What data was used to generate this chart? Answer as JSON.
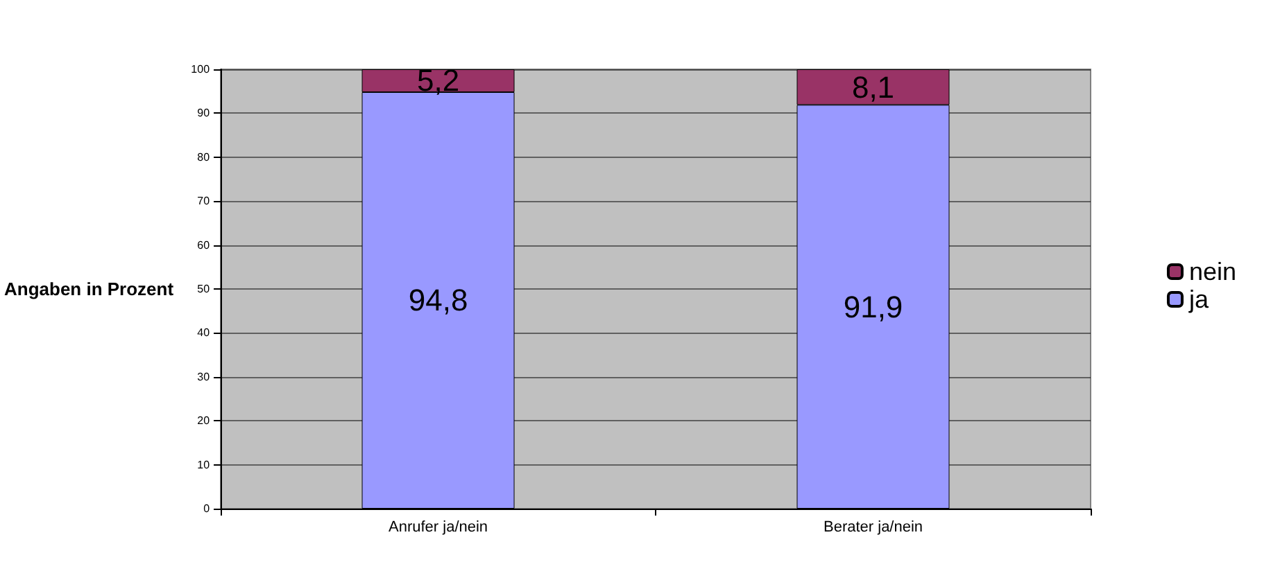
{
  "chart_data": {
    "type": "bar",
    "stacked": true,
    "ylabel": "Angaben in Prozent",
    "categories": [
      "Anrufer ja/nein",
      "Berater ja/nein"
    ],
    "series": [
      {
        "name": "ja",
        "color": "#9999ff",
        "values": [
          94.8,
          91.9
        ],
        "value_labels": [
          "94,8",
          "91,9"
        ]
      },
      {
        "name": "nein",
        "color": "#993366",
        "values": [
          5.2,
          8.1
        ],
        "value_labels": [
          "5,2",
          "8,1"
        ]
      }
    ],
    "ylim": [
      0,
      100
    ],
    "yticks": [
      0,
      10,
      20,
      30,
      40,
      50,
      60,
      70,
      80,
      90,
      100
    ],
    "grid": "y",
    "legend": "right"
  }
}
